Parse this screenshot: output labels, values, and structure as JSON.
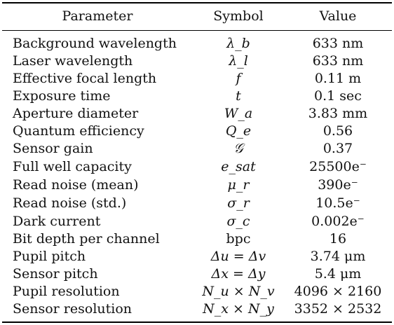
{
  "header": {
    "parameter": "Parameter",
    "symbol": "Symbol",
    "value": "Value"
  },
  "rows": [
    {
      "parameter": "Background wavelength",
      "symbol": "λ_b",
      "value": "633 nm"
    },
    {
      "parameter": "Laser wavelength",
      "symbol": "λ_l",
      "value": "633 nm"
    },
    {
      "parameter": "Effective focal length",
      "symbol": "f",
      "value": "0.11 m"
    },
    {
      "parameter": "Exposure time",
      "symbol": "t",
      "value": "0.1 sec"
    },
    {
      "parameter": "Aperture diameter",
      "symbol": "W_a",
      "value": "3.83 mm"
    },
    {
      "parameter": "Quantum efficiency",
      "symbol": "Q_e",
      "value": "0.56"
    },
    {
      "parameter": "Sensor gain",
      "symbol": "𝒢",
      "value": "0.37"
    },
    {
      "parameter": "Full well capacity",
      "symbol": "e_sat",
      "value": "25500e⁻"
    },
    {
      "parameter": "Read noise (mean)",
      "symbol": "μ_r",
      "value": "390e⁻"
    },
    {
      "parameter": "Read noise (std.)",
      "symbol": "σ_r",
      "value": "10.5e⁻"
    },
    {
      "parameter": "Dark current",
      "symbol": "σ_c",
      "value": "0.002e⁻"
    },
    {
      "parameter": "Bit depth per channel",
      "symbol": "bpc",
      "value": "16"
    },
    {
      "parameter": "Pupil pitch",
      "symbol": "Δu = Δv",
      "value": "3.74 μm"
    },
    {
      "parameter": "Sensor pitch",
      "symbol": "Δx = Δy",
      "value": "5.4 μm"
    },
    {
      "parameter": "Pupil resolution",
      "symbol": "N_u × N_v",
      "value": "4096 × 2160"
    },
    {
      "parameter": "Sensor resolution",
      "symbol": "N_x × N_y",
      "value": "3352 × 2532"
    }
  ]
}
